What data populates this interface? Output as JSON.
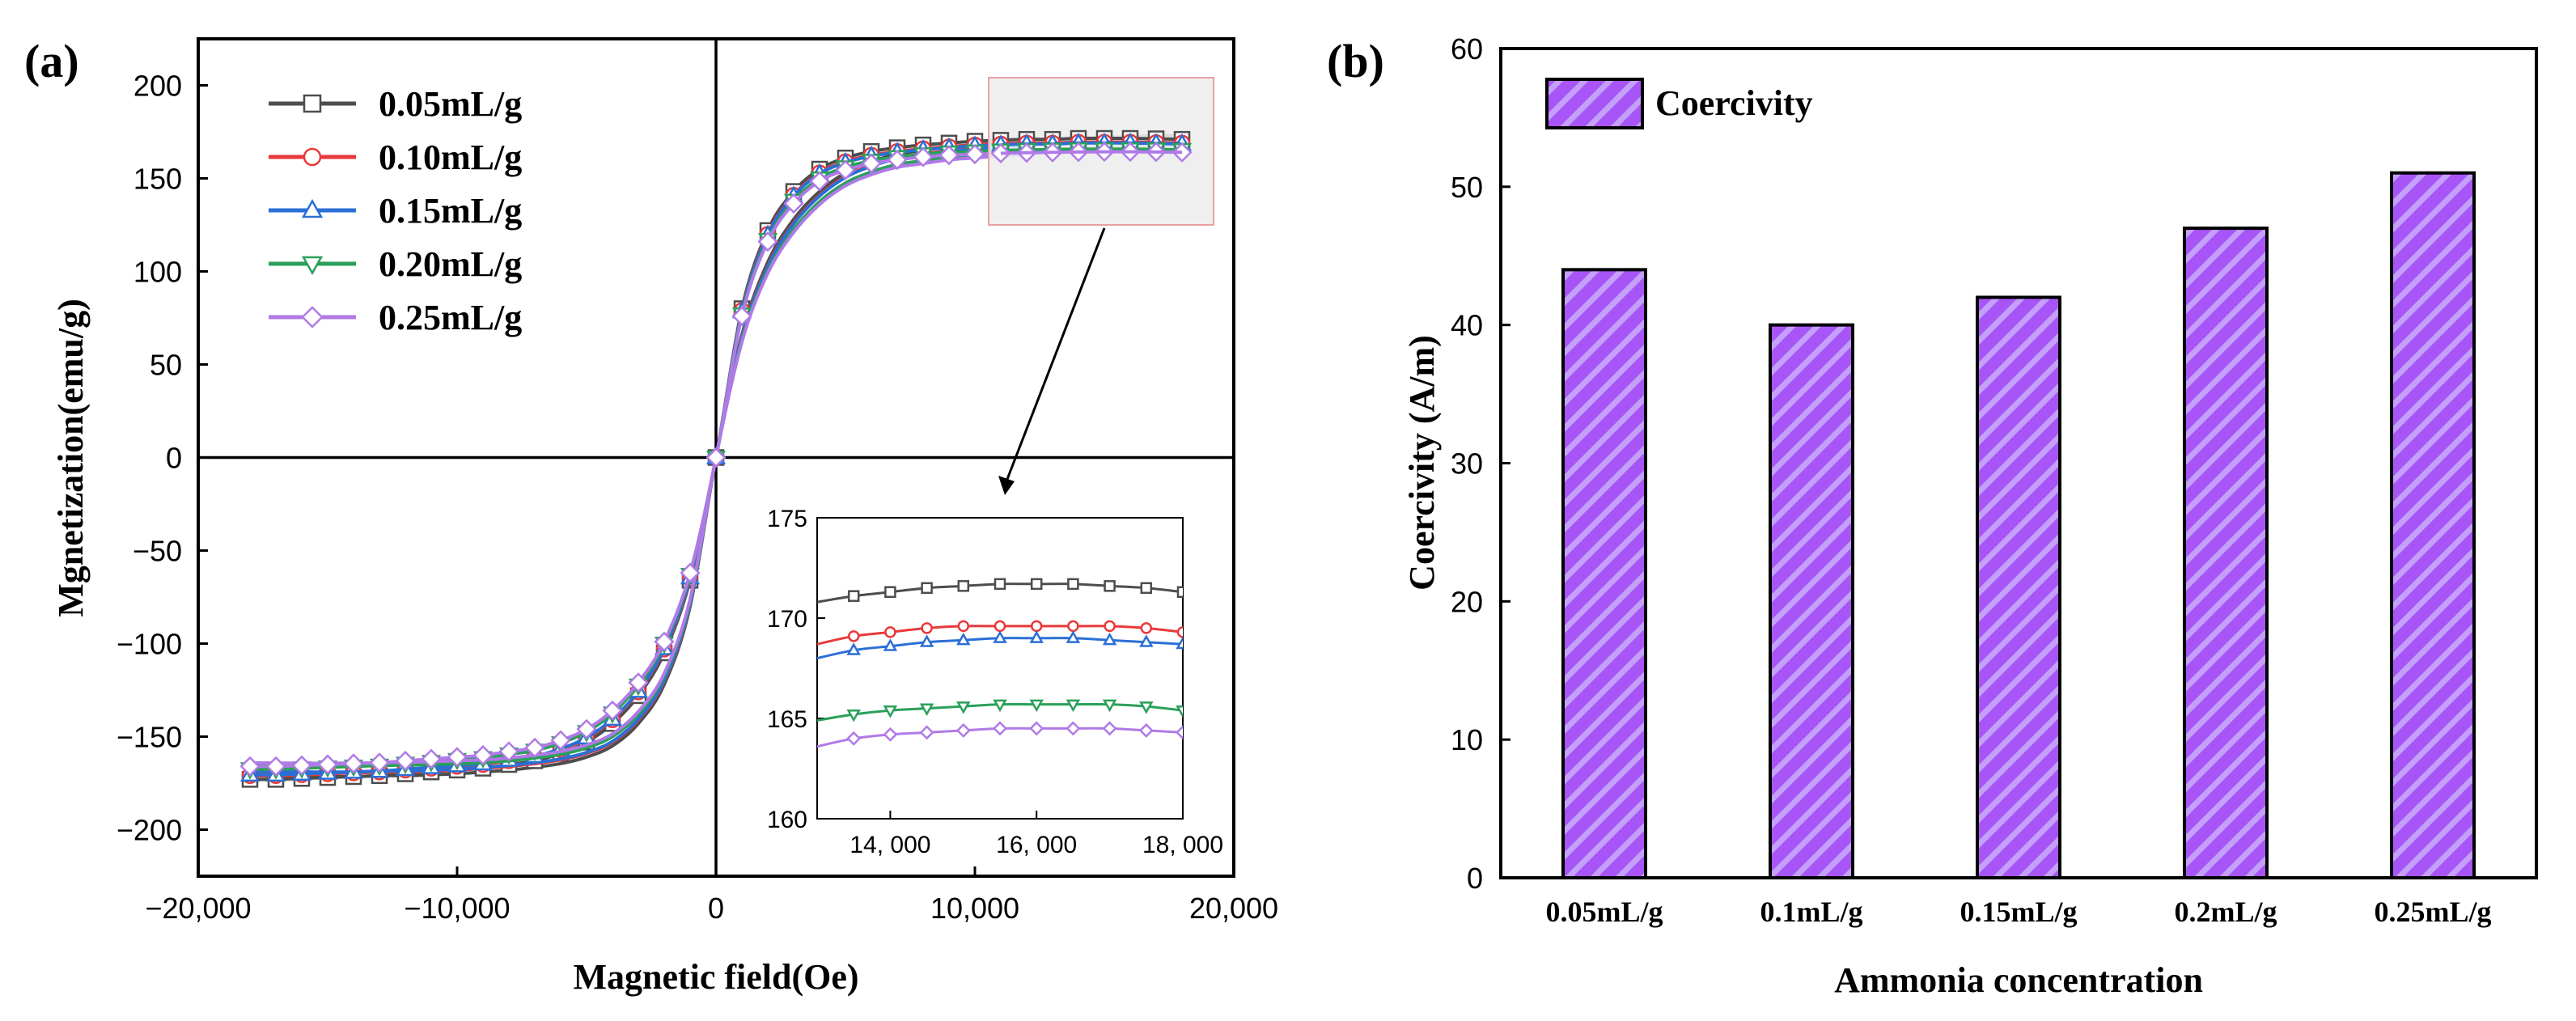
{
  "colors": {
    "s005": "#4d4d4d",
    "s010": "#e8393a",
    "s015": "#2a6fd6",
    "s020": "#2aa05a",
    "s025": "#b07ae6",
    "bar": "#a855f7",
    "inset_box": "#e8a0a0"
  },
  "chart_data": [
    {
      "panel": "(a)",
      "type": "line",
      "xlabel": "Magnetic field(Oe)",
      "ylabel": "Mgnetization(emu/g)",
      "xlim": [
        -20000,
        20000
      ],
      "ylim": [
        -225,
        225
      ],
      "x_ticks": [
        -20000,
        -10000,
        0,
        10000,
        20000
      ],
      "x_tick_labels": [
        "−20,000",
        "−10,000",
        "0",
        "10,000",
        "20,000"
      ],
      "y_ticks": [
        -200,
        -150,
        -100,
        -50,
        0,
        50,
        100,
        150,
        200
      ],
      "y_tick_labels": [
        "−200",
        "−150",
        "−100",
        "−50",
        "0",
        "50",
        "100",
        "150",
        "200"
      ],
      "legend_position": "top-left",
      "x": [
        -18000,
        -17000,
        -16000,
        -15000,
        -14000,
        -13000,
        -12000,
        -11000,
        -10000,
        -9000,
        -8000,
        -7000,
        -6000,
        -5000,
        -4000,
        -3000,
        -2000,
        -1000,
        0,
        1000,
        2000,
        3000,
        4000,
        5000,
        6000,
        7000,
        8000,
        9000,
        10000,
        11000,
        12000,
        13000,
        14000,
        15000,
        16000,
        17000,
        18000
      ],
      "series": [
        {
          "name": "0.05mL/g",
          "marker": "square",
          "color_key": "s005",
          "values": [
            -173,
            -173,
            -172.5,
            -172,
            -171.5,
            -171,
            -170,
            -169,
            -168,
            -167,
            -165,
            -163,
            -159,
            -153,
            -143,
            -128,
            -105,
            -66,
            0,
            80,
            122,
            143,
            155,
            161,
            164.5,
            166.5,
            168,
            169,
            170,
            170.5,
            171,
            171,
            171.5,
            171.5,
            171.5,
            171.3,
            171
          ]
        },
        {
          "name": "0.10mL/g",
          "marker": "circle",
          "color_key": "s010",
          "values": [
            -171,
            -171,
            -170.5,
            -170,
            -169.5,
            -169,
            -168,
            -167,
            -166,
            -165,
            -163,
            -161,
            -157,
            -151,
            -141,
            -126,
            -103,
            -65,
            0,
            79,
            120,
            141,
            153,
            159,
            162.5,
            164.5,
            166,
            167,
            168,
            168.5,
            169,
            169,
            169.5,
            169.5,
            169.5,
            169.3,
            169
          ]
        },
        {
          "name": "0.15mL/g",
          "marker": "triangle-up",
          "color_key": "s015",
          "values": [
            -170.5,
            -170.5,
            -170,
            -169.5,
            -169,
            -168.5,
            -167.5,
            -166.5,
            -165.5,
            -164.5,
            -162.5,
            -160.5,
            -156.5,
            -150.5,
            -140.5,
            -125.5,
            -102.5,
            -64.5,
            0,
            78.5,
            119.5,
            140.5,
            152.5,
            158.5,
            162,
            164,
            165.5,
            166.5,
            167.5,
            168,
            168.5,
            168.5,
            169,
            169,
            169,
            168.8,
            168.5
          ]
        },
        {
          "name": "0.20mL/g",
          "marker": "triangle-down",
          "color_key": "s020",
          "values": [
            -167.5,
            -167.5,
            -167,
            -166.5,
            -166,
            -165.5,
            -164.5,
            -163.5,
            -162.5,
            -161.5,
            -159.5,
            -157.5,
            -153.5,
            -147.5,
            -137.5,
            -122.5,
            -100,
            -63,
            0,
            77,
            117,
            138,
            150,
            156,
            159.5,
            161.5,
            163,
            164,
            164.5,
            165,
            165.3,
            165.5,
            165.7,
            165.7,
            165.7,
            165.6,
            165.3
          ]
        },
        {
          "name": "0.25mL/g",
          "marker": "diamond",
          "color_key": "s025",
          "values": [
            -166,
            -166,
            -165.5,
            -165,
            -164.5,
            -164,
            -163,
            -162,
            -161,
            -160,
            -158,
            -156,
            -152,
            -146,
            -136,
            -121,
            -99,
            -62,
            0,
            76,
            116,
            136.5,
            148.5,
            154.5,
            158,
            160,
            161.5,
            162.5,
            163,
            163.5,
            163.8,
            164,
            164.2,
            164.3,
            164.3,
            164.2,
            164
          ]
        }
      ],
      "inset": {
        "xlim": [
          13000,
          18000
        ],
        "ylim": [
          160,
          175
        ],
        "x_ticks": [
          14000,
          16000,
          18000
        ],
        "x_tick_labels": [
          "14, 000",
          "16, 000",
          "18, 000"
        ],
        "y_ticks": [
          160,
          165,
          170,
          175
        ],
        "y_tick_labels": [
          "160",
          "165",
          "170",
          "175"
        ],
        "x": [
          13000,
          13500,
          14000,
          14500,
          15000,
          15500,
          16000,
          16500,
          17000,
          17500,
          18000
        ],
        "series": [
          {
            "name": "0.05mL/g",
            "values": [
              170.8,
              171.1,
              171.3,
              171.5,
              171.6,
              171.7,
              171.7,
              171.7,
              171.6,
              171.5,
              171.3
            ]
          },
          {
            "name": "0.10mL/g",
            "values": [
              168.7,
              169.1,
              169.3,
              169.5,
              169.6,
              169.6,
              169.6,
              169.6,
              169.6,
              169.5,
              169.3
            ]
          },
          {
            "name": "0.15mL/g",
            "values": [
              168.0,
              168.4,
              168.6,
              168.8,
              168.9,
              169.0,
              169.0,
              169.0,
              168.9,
              168.8,
              168.7
            ]
          },
          {
            "name": "0.20mL/g",
            "values": [
              164.9,
              165.2,
              165.4,
              165.5,
              165.6,
              165.7,
              165.7,
              165.7,
              165.7,
              165.6,
              165.4
            ]
          },
          {
            "name": "0.25mL/g",
            "values": [
              163.6,
              164.0,
              164.2,
              164.3,
              164.4,
              164.5,
              164.5,
              164.5,
              164.5,
              164.4,
              164.3
            ]
          }
        ]
      }
    },
    {
      "panel": "(b)",
      "type": "bar",
      "xlabel": "Ammonia concentration",
      "ylabel": "Coercivity (A/m)",
      "ylim": [
        0,
        60
      ],
      "y_ticks": [
        0,
        10,
        20,
        30,
        40,
        50,
        60
      ],
      "y_tick_labels": [
        "0",
        "10",
        "20",
        "30",
        "40",
        "50",
        "60"
      ],
      "categories": [
        "0.05mL/g",
        "0.1mL/g",
        "0.15mL/g",
        "0.2mL/g",
        "0.25mL/g"
      ],
      "values": [
        44,
        40,
        42,
        47,
        51
      ],
      "legend": "Coercivity",
      "legend_position": "top-left"
    }
  ]
}
